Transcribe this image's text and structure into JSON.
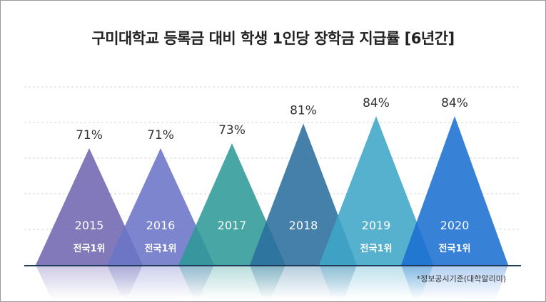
{
  "chart_data": {
    "type": "bar",
    "title": "구미대학교 등록금 대비 학생 1인당 장학금 지급률 [6년간]",
    "xlabel": "",
    "ylabel": "",
    "categories": [
      "2015",
      "2016",
      "2017",
      "2018",
      "2019",
      "2020"
    ],
    "values": [
      71,
      71,
      73,
      81,
      84,
      84
    ],
    "value_labels": [
      "71%",
      "71%",
      "73%",
      "81%",
      "84%",
      "84%"
    ],
    "rank_labels": [
      "전국1위",
      "전국1위",
      "",
      "",
      "전국1위",
      "전국1위"
    ],
    "ylim": [
      0,
      100
    ],
    "grid": true,
    "bar_shape": "triangle",
    "colors": [
      "#6f66b0",
      "#6a74c6",
      "#2f9a97",
      "#2a6e9e",
      "#3fa6c8",
      "#1b6fd2"
    ],
    "footnote": "*정보공시기준(대학알리미)"
  }
}
